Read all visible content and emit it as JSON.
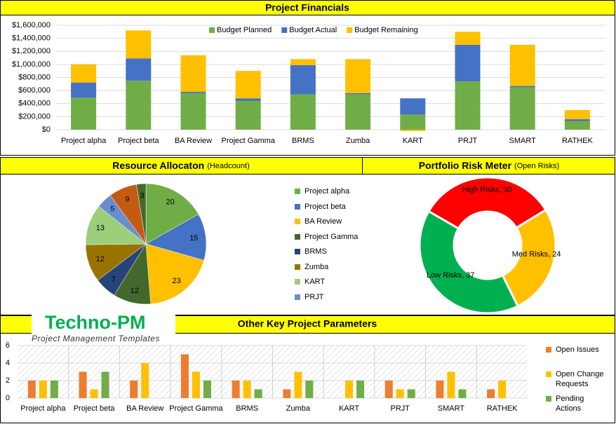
{
  "chart_data": [
    {
      "type": "bar",
      "stacked": true,
      "title": "Project Financials",
      "categories": [
        "Project alpha",
        "Project beta",
        "BA Review",
        "Project Gamma",
        "BRMS",
        "Zumba",
        "KART",
        "PRJT",
        "SMART",
        "RATHEK"
      ],
      "series": [
        {
          "name": "Budget Planned",
          "color": "#70ad47",
          "values": [
            490000,
            750000,
            560000,
            440000,
            540000,
            540000,
            230000,
            740000,
            650000,
            130000
          ]
        },
        {
          "name": "Budget Actual",
          "color": "#4472c4",
          "values": [
            230000,
            340000,
            20000,
            40000,
            450000,
            20000,
            250000,
            560000,
            20000,
            30000
          ]
        },
        {
          "name": "Budget Remaining",
          "color": "#ffc000",
          "values": [
            280000,
            430000,
            560000,
            420000,
            90000,
            520000,
            -20000,
            200000,
            630000,
            140000
          ]
        }
      ],
      "ylim": [
        0,
        1600000
      ],
      "yticks": [
        {
          "value": 0,
          "label": "$0"
        },
        {
          "value": 200000,
          "label": "$200,000"
        },
        {
          "value": 400000,
          "label": "$400,000"
        },
        {
          "value": 600000,
          "label": "$600,000"
        },
        {
          "value": 800000,
          "label": "$800,000"
        },
        {
          "value": 1000000,
          "label": "$1,000,000"
        },
        {
          "value": 1200000,
          "label": "$1,200,000"
        },
        {
          "value": 1400000,
          "label": "$1,400,000"
        },
        {
          "value": 1600000,
          "label": "$1,600,000"
        }
      ],
      "grid": true,
      "legend": "top"
    },
    {
      "type": "pie",
      "title": "Resource Allocaton",
      "subtitle": "(Headcount)",
      "categories": [
        "Project alpha",
        "Project beta",
        "BA Review",
        "Project Gamma",
        "BRMS",
        "Zumba",
        "KART",
        "PRJT",
        null,
        null
      ],
      "values": [
        20,
        15,
        23,
        12,
        7,
        12,
        13,
        5,
        9,
        3
      ],
      "colors": [
        "#70ad47",
        "#4472c4",
        "#ffc000",
        "#43682b",
        "#264478",
        "#997300",
        "#9bcf7a",
        "#698ed0",
        "#c55a11",
        "#43682b"
      ],
      "legend": "right"
    },
    {
      "type": "donut",
      "title": "Portfolio Risk Meter",
      "subtitle": "(Open Risks)",
      "values": [
        30,
        24,
        37
      ],
      "value_labels": [
        "High Risks, 30",
        "Med Risks, 24",
        "Low Risks, 37"
      ],
      "colors": [
        "#ff0000",
        "#ffc000",
        "#00b050"
      ]
    },
    {
      "type": "bar",
      "stacked": false,
      "title": "Other Key Project Parameters",
      "categories": [
        "Project alpha",
        "Project beta",
        "BA Review",
        "Project Gamma",
        "BRMS",
        "Zumba",
        "KART",
        "PRJT",
        "SMART",
        "RATHEK"
      ],
      "series": [
        {
          "name": "Open Issues",
          "color": "#ed7d31",
          "values": [
            2,
            3,
            2,
            5,
            2,
            1,
            0,
            2,
            2,
            1
          ]
        },
        {
          "name": "Open Change Requests",
          "color": "#ffc000",
          "values": [
            2,
            1,
            4,
            3,
            2,
            3,
            2,
            1,
            3,
            2
          ]
        },
        {
          "name": "Pending Actions",
          "color": "#70ad47",
          "values": [
            2,
            3,
            0,
            2,
            1,
            2,
            2,
            1,
            1,
            0
          ]
        }
      ],
      "ylim": [
        0,
        6
      ],
      "yticks": [
        0,
        2,
        4,
        6
      ],
      "grid": true,
      "legend": "right"
    }
  ],
  "branding": {
    "name": "Techno-PM",
    "tagline": "Project Management Templates"
  }
}
